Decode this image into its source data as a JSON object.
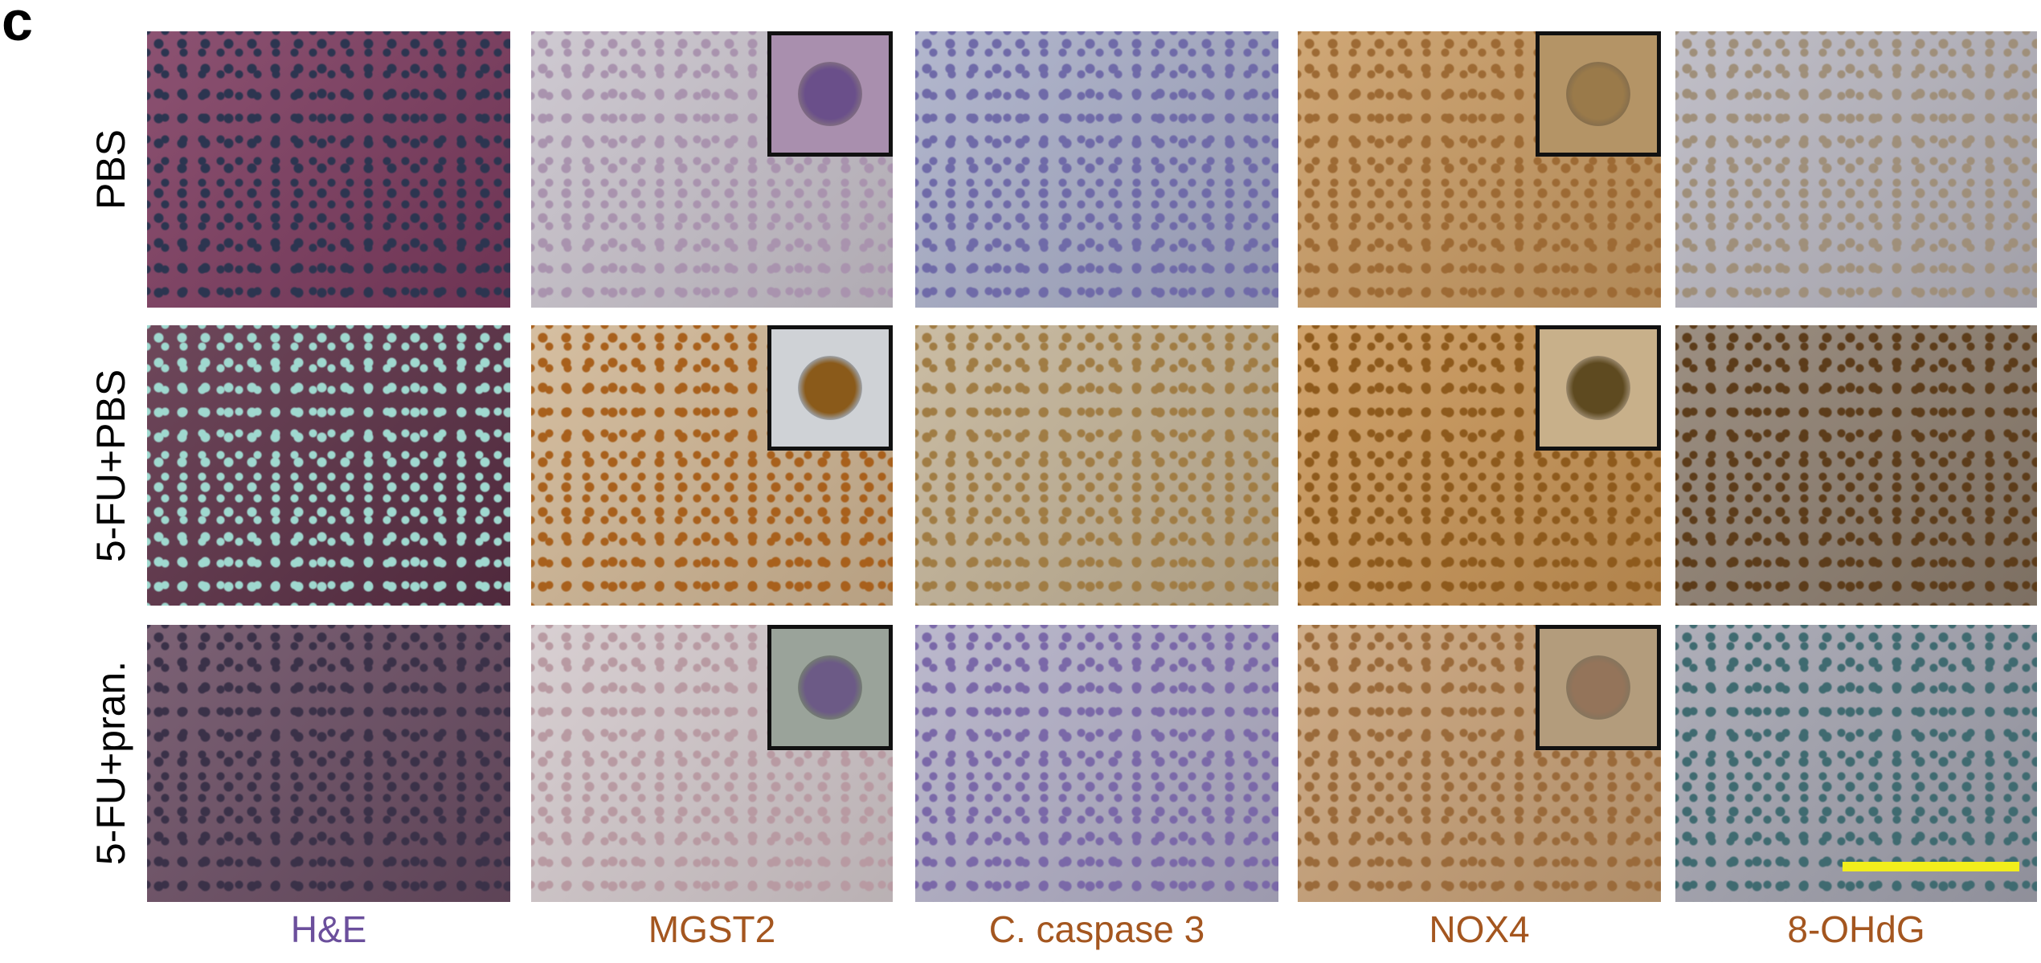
{
  "panel_label": "c",
  "row_labels": [
    "PBS",
    "5-FU+PBS",
    "5-FU+pran."
  ],
  "column_labels": [
    {
      "text": "H&E",
      "color": "#6b4f9c"
    },
    {
      "text": "MGST2",
      "color": "#a4561f"
    },
    {
      "text": "C. caspase 3",
      "color": "#a4561f"
    },
    {
      "text": "NOX4",
      "color": "#a4561f"
    },
    {
      "text": "8-OHdG",
      "color": "#a4561f"
    }
  ],
  "tiles": [
    [
      {
        "bg": "#7c3a5e",
        "dot": "#2c3550",
        "inset": false
      },
      {
        "bg": "#c8c2cb",
        "dot": "#a993ae",
        "inset": true,
        "inset_bg": "#a98fae",
        "inset_cell": "#6a4f8a"
      },
      {
        "bg": "#a8adc7",
        "dot": "#6f6aa8",
        "inset": false
      },
      {
        "bg": "#c99b63",
        "dot": "#9d6a34",
        "inset": true,
        "inset_bg": "#b49466",
        "inset_cell": "#9a7a4a"
      },
      {
        "bg": "#b8b6c0",
        "dot": "#9f8f7a",
        "inset": false
      }
    ],
    [
      {
        "bg": "#5a2e44",
        "dot": "#9fd8cf",
        "inset": false
      },
      {
        "bg": "#d0b694",
        "dot": "#a8601c",
        "inset": true,
        "inset_bg": "#cfd2d6",
        "inset_cell": "#8a5a1a"
      },
      {
        "bg": "#c3b397",
        "dot": "#a07c44",
        "inset": false
      },
      {
        "bg": "#c99556",
        "dot": "#8e5a1c",
        "inset": true,
        "inset_bg": "#c8b08a",
        "inset_cell": "#5e4a20"
      },
      {
        "bg": "#8e7f70",
        "dot": "#5c3c1a",
        "inset": false
      }
    ],
    [
      {
        "bg": "#6a4c62",
        "dot": "#3a3148",
        "inset": false
      },
      {
        "bg": "#d3c9cc",
        "dot": "#b89aa2",
        "inset": true,
        "inset_bg": "#9aa39a",
        "inset_cell": "#6c5a86"
      },
      {
        "bg": "#b2afc6",
        "dot": "#7a68a8",
        "inset": false
      },
      {
        "bg": "#c8a177",
        "dot": "#9a6a3a",
        "inset": true,
        "inset_bg": "#b39c7c",
        "inset_cell": "#94745a"
      },
      {
        "bg": "#a3a3af",
        "dot": "#3f6a70",
        "inset": false,
        "scale_bar": true
      }
    ]
  ],
  "scale_bar_color": "#f2ee1c"
}
